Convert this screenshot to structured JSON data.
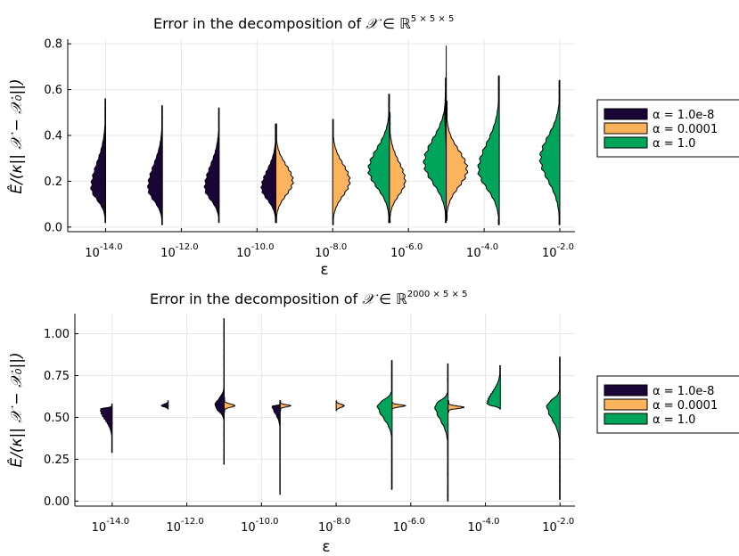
{
  "chart_data": [
    {
      "type": "violin",
      "title_prefix": "Error in the decomposition of ",
      "title_math": "𝒳 ∈ ℝ",
      "title_sup": "5 × 5 × 5",
      "xlabel": "ε",
      "ylabel": "Ê/(κ|| 𝒳 − 𝒳₀||)",
      "x_tick_labels": [
        {
          "base": "10",
          "exp": "-14.0",
          "x": -14
        },
        {
          "base": "10",
          "exp": "-12.0",
          "x": -12
        },
        {
          "base": "10",
          "exp": "-10.0",
          "x": -10
        },
        {
          "base": "10",
          "exp": "-8.0",
          "x": -8
        },
        {
          "base": "10",
          "exp": "-6.0",
          "x": -6
        },
        {
          "base": "10",
          "exp": "-4.0",
          "x": -4
        },
        {
          "base": "10",
          "exp": "-2.0",
          "x": -2
        }
      ],
      "y_ticks": [
        0.0,
        0.2,
        0.4,
        0.6,
        0.8
      ],
      "y_tick_labels": [
        "0.0",
        "0.2",
        "0.4",
        "0.6",
        "0.8"
      ],
      "xlim": [
        -15,
        -1.6
      ],
      "ylim": [
        -0.02,
        0.82
      ],
      "grid": true,
      "legend_position": "outer-right",
      "series": [
        {
          "name": "α = 1.0e-8",
          "color": "#1a0536"
        },
        {
          "name": "α = 0.0001",
          "color": "#fbb45d"
        },
        {
          "name": "α = 1.0",
          "color": "#00a45a"
        }
      ],
      "violins": [
        {
          "x": -14,
          "side": "left",
          "series": 0,
          "ymin": 0.02,
          "ymax": 0.56,
          "mode": 0.17,
          "peak": 0.55,
          "sharp": 1
        },
        {
          "x": -12.5,
          "side": "left",
          "series": 0,
          "ymin": 0.01,
          "ymax": 0.53,
          "mode": 0.17,
          "peak": 0.55,
          "sharp": 1
        },
        {
          "x": -11,
          "side": "left",
          "series": 0,
          "ymin": 0.02,
          "ymax": 0.52,
          "mode": 0.17,
          "peak": 0.55,
          "sharp": 1
        },
        {
          "x": -9.5,
          "side": "left",
          "series": 0,
          "ymin": 0.02,
          "ymax": 0.45,
          "mode": 0.17,
          "peak": 0.55,
          "sharp": 1
        },
        {
          "x": -9.5,
          "side": "right",
          "series": 1,
          "ymin": 0.02,
          "ymax": 0.45,
          "mode": 0.2,
          "peak": 0.65,
          "sharp": 1
        },
        {
          "x": -8,
          "side": "right",
          "series": 1,
          "ymin": 0.01,
          "ymax": 0.47,
          "mode": 0.2,
          "peak": 0.65,
          "sharp": 1
        },
        {
          "x": -6.5,
          "side": "left",
          "series": 2,
          "ymin": 0.02,
          "ymax": 0.58,
          "mode": 0.25,
          "peak": 0.8,
          "sharp": 1
        },
        {
          "x": -6.5,
          "side": "right",
          "series": 1,
          "ymin": 0.02,
          "ymax": 0.5,
          "mode": 0.2,
          "peak": 0.6,
          "sharp": 1
        },
        {
          "x": -5,
          "side": "left",
          "series": 2,
          "ymin": 0.02,
          "ymax": 0.65,
          "mode": 0.28,
          "peak": 0.85,
          "sharp": 1
        },
        {
          "x": -5,
          "side": "left",
          "series": 0,
          "ymin": 0.25,
          "ymax": 0.79,
          "mode": 0.5,
          "peak": 0.06,
          "sharp": 2.5
        },
        {
          "x": -5,
          "side": "right",
          "series": 1,
          "ymin": 0.03,
          "ymax": 0.55,
          "mode": 0.25,
          "peak": 0.8,
          "sharp": 1
        },
        {
          "x": -3.6,
          "side": "left",
          "series": 2,
          "ymin": 0.01,
          "ymax": 0.66,
          "mode": 0.25,
          "peak": 0.8,
          "sharp": 1
        },
        {
          "x": -2,
          "side": "left",
          "series": 2,
          "ymin": 0.01,
          "ymax": 0.64,
          "mode": 0.3,
          "peak": 0.75,
          "sharp": 1
        }
      ]
    },
    {
      "type": "violin",
      "title_prefix": "Error in the decomposition of ",
      "title_math": "𝒳 ∈ ℝ",
      "title_sup": "2000 × 5 × 5",
      "xlabel": "ε",
      "ylabel": "Ê/(κ|| 𝒳 − 𝒳₀||)",
      "x_tick_labels": [
        {
          "base": "10",
          "exp": "-14.0",
          "x": -14
        },
        {
          "base": "10",
          "exp": "-12.0",
          "x": -12
        },
        {
          "base": "10",
          "exp": "-10.0",
          "x": -10
        },
        {
          "base": "10",
          "exp": "-8.0",
          "x": -8
        },
        {
          "base": "10",
          "exp": "-6.0",
          "x": -6
        },
        {
          "base": "10",
          "exp": "-4.0",
          "x": -4
        },
        {
          "base": "10",
          "exp": "-2.0",
          "x": -2
        }
      ],
      "y_ticks": [
        0.0,
        0.25,
        0.5,
        0.75,
        1.0
      ],
      "y_tick_labels": [
        "0.00",
        "0.25",
        "0.50",
        "0.75",
        "1.00"
      ],
      "xlim": [
        -15,
        -1.6
      ],
      "ylim": [
        -0.03,
        1.12
      ],
      "grid": true,
      "legend_position": "outer-right",
      "series": [
        {
          "name": "α = 1.0e-8",
          "color": "#1a0536"
        },
        {
          "name": "α = 0.0001",
          "color": "#fbb45d"
        },
        {
          "name": "α = 1.0",
          "color": "#00a45a"
        }
      ],
      "violins": [
        {
          "x": -14,
          "side": "left",
          "series": 0,
          "ymin": 0.29,
          "ymax": 0.58,
          "mode": 0.55,
          "peak": 0.45,
          "sharp": 3
        },
        {
          "x": -12.5,
          "side": "left",
          "series": 0,
          "ymin": 0.55,
          "ymax": 0.6,
          "mode": 0.57,
          "peak": 0.25,
          "sharp": 2
        },
        {
          "x": -11,
          "side": "left",
          "series": 0,
          "ymin": 0.22,
          "ymax": 1.09,
          "mode": 0.57,
          "peak": 0.35,
          "sharp": 8
        },
        {
          "x": -11,
          "side": "right",
          "series": 1,
          "ymin": 0.53,
          "ymax": 0.62,
          "mode": 0.57,
          "peak": 0.4,
          "sharp": 3
        },
        {
          "x": -9.5,
          "side": "left",
          "series": 0,
          "ymin": 0.04,
          "ymax": 0.6,
          "mode": 0.57,
          "peak": 0.3,
          "sharp": 8
        },
        {
          "x": -9.5,
          "side": "right",
          "series": 1,
          "ymin": 0.54,
          "ymax": 0.6,
          "mode": 0.57,
          "peak": 0.4,
          "sharp": 3
        },
        {
          "x": -8,
          "side": "right",
          "series": 1,
          "ymin": 0.54,
          "ymax": 0.6,
          "mode": 0.57,
          "peak": 0.3,
          "sharp": 2
        },
        {
          "x": -6.5,
          "side": "left",
          "series": 2,
          "ymin": 0.07,
          "ymax": 0.84,
          "mode": 0.57,
          "peak": 0.55,
          "sharp": 5
        },
        {
          "x": -6.5,
          "side": "right",
          "series": 1,
          "ymin": 0.55,
          "ymax": 0.59,
          "mode": 0.57,
          "peak": 0.5,
          "sharp": 2
        },
        {
          "x": -5,
          "side": "left",
          "series": 2,
          "ymin": 0.0,
          "ymax": 0.82,
          "mode": 0.57,
          "peak": 0.5,
          "sharp": 5
        },
        {
          "x": -5,
          "side": "right",
          "series": 1,
          "ymin": 0.53,
          "ymax": 0.6,
          "mode": 0.56,
          "peak": 0.6,
          "sharp": 3
        },
        {
          "x": -3.6,
          "side": "left",
          "series": 2,
          "ymin": 0.55,
          "ymax": 0.81,
          "mode": 0.58,
          "peak": 0.5,
          "sharp": 2
        },
        {
          "x": -2,
          "side": "left",
          "series": 2,
          "ymin": 0.01,
          "ymax": 0.86,
          "mode": 0.57,
          "peak": 0.5,
          "sharp": 5
        }
      ]
    }
  ]
}
